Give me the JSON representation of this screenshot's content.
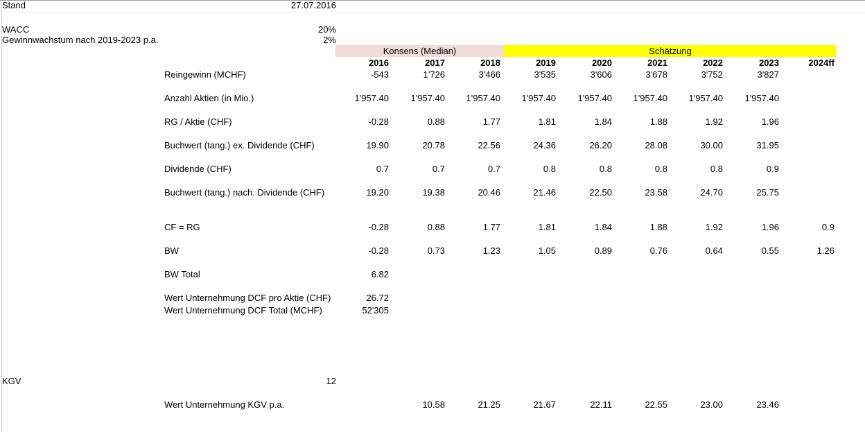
{
  "meta": {
    "stand_label": "Stand",
    "stand_value": "27.07.2016",
    "wacc_label": "WACC",
    "wacc_value": "20%",
    "growth_label": "Gewinnwachstum nach 2019-2023 p.a.",
    "growth_value": "2%",
    "kgv_label": "KGV",
    "kgv_value": "12"
  },
  "header": {
    "konsens_label": "Konsens (Median)",
    "konsens_color": "#F2DCDB",
    "schaetzung_label": "Schätzung",
    "schaetzung_color": "#FFFF00",
    "years": [
      "2016",
      "2017",
      "2018",
      "2019",
      "2020",
      "2021",
      "2022",
      "2023",
      "2024ff"
    ]
  },
  "table": {
    "rows": [
      {
        "id": "reingewinn",
        "label": "Reingewinn (MCHF)",
        "values": [
          "-543",
          "1'726",
          "3'466",
          "3'535",
          "3'606",
          "3'678",
          "3'752",
          "3'827",
          ""
        ]
      },
      {
        "id": "anzahl",
        "label": "Anzahl Aktien (in Mio.)",
        "values": [
          "1'957.40",
          "1'957.40",
          "1'957.40",
          "1'957.40",
          "1'957.40",
          "1'957.40",
          "1'957.40",
          "1'957.40",
          ""
        ]
      },
      {
        "id": "rg_aktie",
        "label": "RG / Aktie (CHF)",
        "values": [
          "-0.28",
          "0.88",
          "1.77",
          "1.81",
          "1.84",
          "1.88",
          "1.92",
          "1.96",
          ""
        ]
      },
      {
        "id": "buchwert_ex",
        "label": "Buchwert (tang.) ex. Dividende (CHF)",
        "values": [
          "19.90",
          "20.78",
          "22.56",
          "24.36",
          "26.20",
          "28.08",
          "30.00",
          "31.95",
          ""
        ]
      },
      {
        "id": "dividende",
        "label": "Dividende (CHF)",
        "values": [
          "0.7",
          "0.7",
          "0.7",
          "0.8",
          "0.8",
          "0.8",
          "0.8",
          "0.9",
          ""
        ]
      },
      {
        "id": "buchwert_nach",
        "label": "Buchwert (tang.) nach. Dividende (CHF)",
        "values": [
          "19.20",
          "19.38",
          "20.46",
          "21.46",
          "22.50",
          "23.58",
          "24.70",
          "25.75",
          ""
        ]
      },
      {
        "id": "cf_rg",
        "label": "CF = RG",
        "values": [
          "-0.28",
          "0.88",
          "1.77",
          "1.81",
          "1.84",
          "1.88",
          "1.92",
          "1.96",
          "0.9"
        ]
      },
      {
        "id": "bw",
        "label": "BW",
        "values": [
          "-0.28",
          "0.73",
          "1.23",
          "1.05",
          "0.89",
          "0.76",
          "0.64",
          "0.55",
          "1.26"
        ]
      },
      {
        "id": "bw_total",
        "label": "BW Total",
        "values": [
          "6.82",
          "",
          "",
          "",
          "",
          "",
          "",
          "",
          ""
        ]
      },
      {
        "id": "dcf_pro",
        "label": "Wert Unternehmung DCF pro Aktie (CHF)",
        "values": [
          "26.72",
          "",
          "",
          "",
          "",
          "",
          "",
          "",
          ""
        ]
      },
      {
        "id": "dcf_total",
        "label": "Wert Unternehmung DCF Total (MCHF)",
        "values": [
          "52'305",
          "",
          "",
          "",
          "",
          "",
          "",
          "",
          ""
        ]
      },
      {
        "id": "kgv_row",
        "label": "Wert Unternehmung KGV p.a.",
        "values": [
          "",
          "10.58",
          "21.25",
          "21.67",
          "22.11",
          "22.55",
          "23.00",
          "23.46",
          ""
        ]
      }
    ]
  }
}
